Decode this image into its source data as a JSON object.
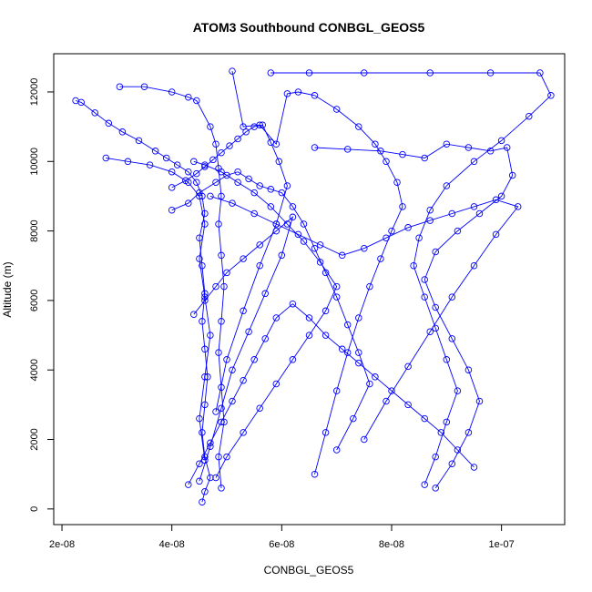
{
  "chart_data": {
    "type": "scatter",
    "connected": true,
    "title": "ATOM3 Southbound CONBGL_GEOS5",
    "xlabel": "CONBGL_GEOS5",
    "ylabel": "Altitude (m)",
    "xlim": [
      1.85e-08,
      1.115e-07
    ],
    "ylim": [
      -450,
      13100
    ],
    "x_ticks": [
      2e-08,
      4e-08,
      6e-08,
      8e-08,
      1e-07
    ],
    "x_tick_labels": [
      "2e-08",
      "4e-08",
      "6e-08",
      "8e-08",
      "1e-07"
    ],
    "y_ticks": [
      0,
      2000,
      4000,
      6000,
      8000,
      10000,
      12000
    ],
    "y_tick_labels": [
      "0",
      "2000",
      "4000",
      "6000",
      "8000",
      "10000",
      "12000"
    ],
    "grid": false,
    "marker": "open-circle",
    "color": "#0000ff",
    "series": [
      {
        "x": [
          2.25e-08,
          2.35e-08,
          2.6e-08,
          2.85e-08,
          3.1e-08,
          3.4e-08,
          3.7e-08,
          3.9e-08,
          4.1e-08,
          4.3e-08,
          4.45e-08,
          4.55e-08,
          4.6e-08,
          4.5e-08,
          4.55e-08,
          4.6e-08,
          4.55e-08,
          4.6e-08,
          4.65e-08,
          4.6e-08,
          4.55e-08,
          4.6e-08,
          4.7e-08,
          4.6e-08,
          4.55e-08
        ],
        "y": [
          11750,
          11700,
          11400,
          11100,
          10850,
          10600,
          10300,
          10100,
          9900,
          9700,
          9400,
          9000,
          8500,
          7800,
          7000,
          6200,
          5400,
          4600,
          3800,
          3000,
          2200,
          1500,
          900,
          500,
          200
        ]
      },
      {
        "x": [
          3.05e-08,
          3.5e-08,
          4e-08,
          4.3e-08,
          4.45e-08,
          4.7e-08,
          4.8e-08,
          4.85e-08,
          4.9e-08,
          4.85e-08,
          4.9e-08,
          4.95e-08,
          4.9e-08,
          4.85e-08,
          4.9e-08,
          4.95e-08,
          4.85e-08,
          4.9e-08
        ],
        "y": [
          12150,
          12150,
          12000,
          11850,
          11750,
          11000,
          10500,
          9800,
          9000,
          8200,
          7300,
          6400,
          5400,
          4500,
          3500,
          2500,
          1500,
          600
        ]
      },
      {
        "x": [
          5.8e-08,
          6.5e-08,
          7.5e-08,
          8.7e-08,
          9.8e-08,
          1.07e-07,
          1.09e-07,
          1.05e-07,
          1e-07,
          9.5e-08,
          9e-08,
          8.7e-08,
          8.5e-08,
          8.4e-08,
          8.6e-08,
          8.8e-08,
          9e-08,
          9.2e-08,
          9e-08,
          8.8e-08,
          8.6e-08
        ],
        "y": [
          12550,
          12550,
          12550,
          12550,
          12550,
          12550,
          11900,
          11300,
          10600,
          10000,
          9300,
          8600,
          7800,
          7000,
          6100,
          5200,
          4300,
          3400,
          2500,
          1500,
          700
        ]
      },
      {
        "x": [
          5.1e-08,
          5.3e-08,
          5.6e-08,
          5.9e-08,
          6.1e-08,
          6.3e-08,
          6.6e-08,
          7e-08,
          7.4e-08,
          7.7e-08,
          7.9e-08,
          8.1e-08,
          8.2e-08,
          8e-08,
          7.8e-08,
          7.6e-08,
          7.4e-08,
          7.2e-08,
          7e-08,
          6.8e-08,
          6.6e-08
        ],
        "y": [
          12600,
          11000,
          11050,
          10500,
          11950,
          12000,
          11900,
          11500,
          11000,
          10500,
          10000,
          9400,
          8700,
          8000,
          7200,
          6400,
          5500,
          4500,
          3400,
          2200,
          1000
        ]
      },
      {
        "x": [
          4e-08,
          4.3e-08,
          4.5e-08,
          4.8e-08,
          5e-08,
          5.2e-08,
          5.4e-08,
          5.6e-08,
          5.8e-08,
          6e-08,
          6.2e-08,
          6.4e-08,
          6.6e-08,
          6.8e-08,
          7e-08,
          7.2e-08,
          7.4e-08,
          7.6e-08,
          7.3e-08,
          7e-08
        ],
        "y": [
          8600,
          8800,
          9100,
          9400,
          9600,
          9700,
          9500,
          9300,
          9200,
          9100,
          8700,
          8200,
          7500,
          6800,
          6100,
          5300,
          4500,
          3600,
          2600,
          1700
        ]
      },
      {
        "x": [
          6.6e-08,
          7.2e-08,
          7.8e-08,
          8.2e-08,
          8.6e-08,
          9e-08,
          9.4e-08,
          9.8e-08,
          1.01e-07,
          1.02e-07,
          1e-07,
          9.6e-08,
          9.2e-08,
          8.8e-08,
          8.6e-08,
          8.8e-08,
          9.1e-08,
          9.4e-08,
          9.6e-08,
          9.4e-08,
          9.1e-08,
          8.8e-08
        ],
        "y": [
          10400,
          10350,
          10300,
          10200,
          10100,
          10500,
          10400,
          10300,
          10400,
          9600,
          9000,
          8500,
          8000,
          7400,
          6600,
          5800,
          4900,
          4000,
          3100,
          2200,
          1300,
          600
        ]
      },
      {
        "x": [
          4.7e-08,
          5.1e-08,
          5.5e-08,
          5.9e-08,
          6.3e-08,
          6.7e-08,
          7.1e-08,
          7.5e-08,
          7.9e-08,
          8.3e-08,
          8.7e-08,
          9.1e-08,
          9.5e-08,
          9.9e-08,
          1.03e-07,
          9.9e-08,
          9.5e-08,
          9.1e-08,
          8.7e-08,
          8.3e-08,
          7.9e-08,
          7.5e-08
        ],
        "y": [
          9000,
          8800,
          8500,
          8200,
          7900,
          7600,
          7300,
          7500,
          7800,
          8100,
          8300,
          8500,
          8700,
          8900,
          8700,
          7900,
          7000,
          6100,
          5100,
          4100,
          3100,
          2000
        ]
      },
      {
        "x": [
          4.4e-08,
          4.6e-08,
          4.9e-08,
          5.2e-08,
          5.5e-08,
          5.8e-08,
          6.1e-08,
          6.4e-08,
          6.7e-08,
          7e-08,
          6.8e-08,
          6.5e-08,
          6.2e-08,
          5.9e-08,
          5.6e-08,
          5.3e-08,
          5e-08,
          4.8e-08
        ],
        "y": [
          10000,
          9900,
          9700,
          9400,
          9100,
          8700,
          8200,
          7700,
          7100,
          6400,
          5700,
          5000,
          4300,
          3600,
          2900,
          2200,
          1500,
          900
        ]
      },
      {
        "x": [
          4.3e-08,
          4.5e-08,
          4.7e-08,
          4.9e-08,
          5.1e-08,
          5.3e-08,
          5.5e-08,
          5.7e-08,
          5.9e-08,
          6.2e-08,
          6.5e-08,
          6.8e-08,
          7.1e-08,
          7.4e-08,
          7.7e-08,
          8e-08,
          8.3e-08,
          8.6e-08,
          8.9e-08,
          9.2e-08,
          9.5e-08
        ],
        "y": [
          700,
          1300,
          1900,
          2500,
          3100,
          3700,
          4300,
          4900,
          5500,
          5900,
          5500,
          5000,
          4600,
          4200,
          3800,
          3400,
          3000,
          2600,
          2200,
          1700,
          1200
        ]
      },
      {
        "x": [
          4.4e-08,
          4.6e-08,
          4.8e-08,
          5e-08,
          5.3e-08,
          5.6e-08,
          5.9e-08,
          6.2e-08,
          6e-08,
          5.7e-08,
          5.4e-08,
          5.1e-08,
          4.9e-08,
          4.7e-08,
          4.5e-08
        ],
        "y": [
          5600,
          6000,
          6400,
          6800,
          7200,
          7600,
          8000,
          8400,
          7300,
          6200,
          5100,
          4000,
          2900,
          1800,
          800
        ]
      },
      {
        "x": [
          4e-08,
          4.25e-08,
          4.45e-08,
          4.6e-08,
          4.75e-08,
          4.9e-08,
          5.05e-08,
          5.2e-08,
          5.35e-08,
          5.5e-08,
          5.65e-08,
          5.8e-08,
          5.95e-08,
          6.1e-08,
          5.9e-08,
          5.6e-08,
          5.3e-08,
          5e-08,
          4.8e-08
        ],
        "y": [
          9250,
          9450,
          9650,
          9850,
          10050,
          10250,
          10450,
          10650,
          10850,
          11000,
          11050,
          10550,
          10000,
          9300,
          8200,
          7000,
          5700,
          4300,
          2800
        ]
      },
      {
        "x": [
          2.8e-08,
          3.2e-08,
          3.6e-08,
          4e-08,
          4.3e-08,
          4.5e-08,
          4.6e-08,
          4.5e-08,
          4.6e-08,
          4.7e-08,
          4.6e-08,
          4.5e-08,
          4.6e-08
        ],
        "y": [
          10100,
          10000,
          9900,
          9700,
          9400,
          9000,
          8200,
          7200,
          6100,
          5000,
          3800,
          2600,
          1400
        ]
      }
    ]
  }
}
